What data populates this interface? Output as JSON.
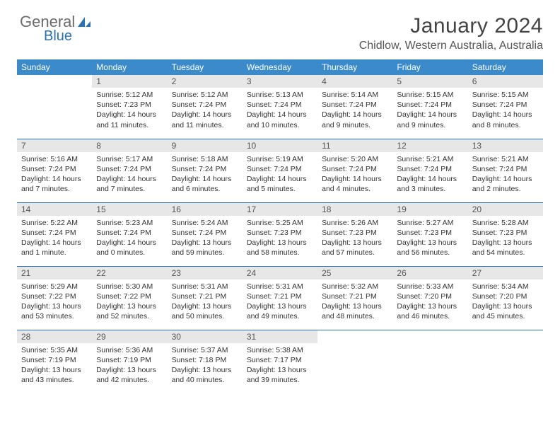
{
  "logo": {
    "part1": "General",
    "part2": "Blue"
  },
  "header": {
    "title": "January 2024",
    "subtitle": "Chidlow, Western Australia, Australia"
  },
  "colors": {
    "header_bg": "#3b8bca",
    "header_text": "#ffffff",
    "daynum_bg": "#e7e7e7",
    "row_border": "#2a72b5",
    "logo_gray": "#6b6b6b",
    "logo_blue": "#2a72b5"
  },
  "weekdays": [
    "Sunday",
    "Monday",
    "Tuesday",
    "Wednesday",
    "Thursday",
    "Friday",
    "Saturday"
  ],
  "weeks": [
    [
      {
        "n": "",
        "sr": "",
        "ss": "",
        "dl": ""
      },
      {
        "n": "1",
        "sr": "Sunrise: 5:12 AM",
        "ss": "Sunset: 7:23 PM",
        "dl": "Daylight: 14 hours and 11 minutes."
      },
      {
        "n": "2",
        "sr": "Sunrise: 5:12 AM",
        "ss": "Sunset: 7:24 PM",
        "dl": "Daylight: 14 hours and 11 minutes."
      },
      {
        "n": "3",
        "sr": "Sunrise: 5:13 AM",
        "ss": "Sunset: 7:24 PM",
        "dl": "Daylight: 14 hours and 10 minutes."
      },
      {
        "n": "4",
        "sr": "Sunrise: 5:14 AM",
        "ss": "Sunset: 7:24 PM",
        "dl": "Daylight: 14 hours and 9 minutes."
      },
      {
        "n": "5",
        "sr": "Sunrise: 5:15 AM",
        "ss": "Sunset: 7:24 PM",
        "dl": "Daylight: 14 hours and 9 minutes."
      },
      {
        "n": "6",
        "sr": "Sunrise: 5:15 AM",
        "ss": "Sunset: 7:24 PM",
        "dl": "Daylight: 14 hours and 8 minutes."
      }
    ],
    [
      {
        "n": "7",
        "sr": "Sunrise: 5:16 AM",
        "ss": "Sunset: 7:24 PM",
        "dl": "Daylight: 14 hours and 7 minutes."
      },
      {
        "n": "8",
        "sr": "Sunrise: 5:17 AM",
        "ss": "Sunset: 7:24 PM",
        "dl": "Daylight: 14 hours and 7 minutes."
      },
      {
        "n": "9",
        "sr": "Sunrise: 5:18 AM",
        "ss": "Sunset: 7:24 PM",
        "dl": "Daylight: 14 hours and 6 minutes."
      },
      {
        "n": "10",
        "sr": "Sunrise: 5:19 AM",
        "ss": "Sunset: 7:24 PM",
        "dl": "Daylight: 14 hours and 5 minutes."
      },
      {
        "n": "11",
        "sr": "Sunrise: 5:20 AM",
        "ss": "Sunset: 7:24 PM",
        "dl": "Daylight: 14 hours and 4 minutes."
      },
      {
        "n": "12",
        "sr": "Sunrise: 5:21 AM",
        "ss": "Sunset: 7:24 PM",
        "dl": "Daylight: 14 hours and 3 minutes."
      },
      {
        "n": "13",
        "sr": "Sunrise: 5:21 AM",
        "ss": "Sunset: 7:24 PM",
        "dl": "Daylight: 14 hours and 2 minutes."
      }
    ],
    [
      {
        "n": "14",
        "sr": "Sunrise: 5:22 AM",
        "ss": "Sunset: 7:24 PM",
        "dl": "Daylight: 14 hours and 1 minute."
      },
      {
        "n": "15",
        "sr": "Sunrise: 5:23 AM",
        "ss": "Sunset: 7:24 PM",
        "dl": "Daylight: 14 hours and 0 minutes."
      },
      {
        "n": "16",
        "sr": "Sunrise: 5:24 AM",
        "ss": "Sunset: 7:24 PM",
        "dl": "Daylight: 13 hours and 59 minutes."
      },
      {
        "n": "17",
        "sr": "Sunrise: 5:25 AM",
        "ss": "Sunset: 7:23 PM",
        "dl": "Daylight: 13 hours and 58 minutes."
      },
      {
        "n": "18",
        "sr": "Sunrise: 5:26 AM",
        "ss": "Sunset: 7:23 PM",
        "dl": "Daylight: 13 hours and 57 minutes."
      },
      {
        "n": "19",
        "sr": "Sunrise: 5:27 AM",
        "ss": "Sunset: 7:23 PM",
        "dl": "Daylight: 13 hours and 56 minutes."
      },
      {
        "n": "20",
        "sr": "Sunrise: 5:28 AM",
        "ss": "Sunset: 7:23 PM",
        "dl": "Daylight: 13 hours and 54 minutes."
      }
    ],
    [
      {
        "n": "21",
        "sr": "Sunrise: 5:29 AM",
        "ss": "Sunset: 7:22 PM",
        "dl": "Daylight: 13 hours and 53 minutes."
      },
      {
        "n": "22",
        "sr": "Sunrise: 5:30 AM",
        "ss": "Sunset: 7:22 PM",
        "dl": "Daylight: 13 hours and 52 minutes."
      },
      {
        "n": "23",
        "sr": "Sunrise: 5:31 AM",
        "ss": "Sunset: 7:21 PM",
        "dl": "Daylight: 13 hours and 50 minutes."
      },
      {
        "n": "24",
        "sr": "Sunrise: 5:31 AM",
        "ss": "Sunset: 7:21 PM",
        "dl": "Daylight: 13 hours and 49 minutes."
      },
      {
        "n": "25",
        "sr": "Sunrise: 5:32 AM",
        "ss": "Sunset: 7:21 PM",
        "dl": "Daylight: 13 hours and 48 minutes."
      },
      {
        "n": "26",
        "sr": "Sunrise: 5:33 AM",
        "ss": "Sunset: 7:20 PM",
        "dl": "Daylight: 13 hours and 46 minutes."
      },
      {
        "n": "27",
        "sr": "Sunrise: 5:34 AM",
        "ss": "Sunset: 7:20 PM",
        "dl": "Daylight: 13 hours and 45 minutes."
      }
    ],
    [
      {
        "n": "28",
        "sr": "Sunrise: 5:35 AM",
        "ss": "Sunset: 7:19 PM",
        "dl": "Daylight: 13 hours and 43 minutes."
      },
      {
        "n": "29",
        "sr": "Sunrise: 5:36 AM",
        "ss": "Sunset: 7:19 PM",
        "dl": "Daylight: 13 hours and 42 minutes."
      },
      {
        "n": "30",
        "sr": "Sunrise: 5:37 AM",
        "ss": "Sunset: 7:18 PM",
        "dl": "Daylight: 13 hours and 40 minutes."
      },
      {
        "n": "31",
        "sr": "Sunrise: 5:38 AM",
        "ss": "Sunset: 7:17 PM",
        "dl": "Daylight: 13 hours and 39 minutes."
      },
      {
        "n": "",
        "sr": "",
        "ss": "",
        "dl": ""
      },
      {
        "n": "",
        "sr": "",
        "ss": "",
        "dl": ""
      },
      {
        "n": "",
        "sr": "",
        "ss": "",
        "dl": ""
      }
    ]
  ]
}
